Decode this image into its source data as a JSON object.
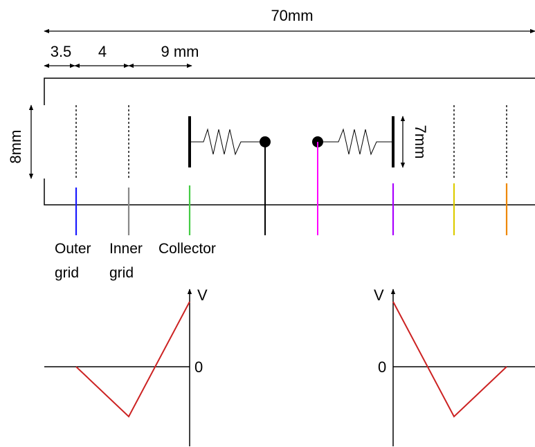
{
  "dimensions": {
    "total": "70mm",
    "seg1": "3.5",
    "seg2": "4",
    "seg3": "9 mm",
    "height": "8mm",
    "plate": "7mm"
  },
  "labels": {
    "outer_grid": [
      "Outer",
      "grid"
    ],
    "inner_grid": [
      "Inner",
      "grid"
    ],
    "collector": "Collector"
  },
  "electrode_colors": {
    "outer_grid": "#1a1aff",
    "inner_grid": "#888888",
    "collector": "#44cc44",
    "center_left": "#000000",
    "center_right": "#ff00ff",
    "right_collector": "#aa00ff",
    "right_inner_grid": "#ddcc00",
    "right_outer_grid": "#ee8800"
  },
  "plots": {
    "left": {
      "ylabel": "V",
      "zero_label": "0",
      "line_color": "#cc2222"
    },
    "right": {
      "ylabel": "V",
      "zero_label": "0",
      "line_color": "#cc2222"
    }
  }
}
